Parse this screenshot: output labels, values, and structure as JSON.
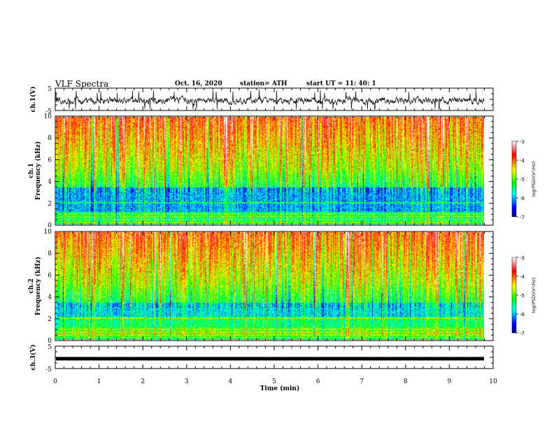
{
  "header": {
    "title": "VLF Spectra",
    "date": "Oct. 16, 2020",
    "station": "station= ATH",
    "start": "start  UT =   11: 40: 1"
  },
  "labels": {
    "ch1_wave": "ch.1(V)",
    "ch1_spec_a": "ch.1",
    "ch1_spec_b": "Frequency (kHz)",
    "ch2_spec_a": "ch.2",
    "ch2_spec_b": "Frequency (kHz)",
    "ch3_wave": "ch.3(V)",
    "xaxis": "Time  (min)",
    "colorbar": "log(PSD)(V²/Hz)"
  },
  "colors": {
    "low": "#000080",
    "blue": "#0000ff",
    "cyan": "#00ffff",
    "green": "#00ff00",
    "yellow": "#ffff00",
    "red": "#ff0000",
    "high": "#ffffff"
  },
  "chart_data": [
    {
      "type": "line",
      "name": "ch1-waveform",
      "xlabel": "",
      "ylabel": "ch.1(V)",
      "xlim": [
        0,
        10
      ],
      "ylim": [
        -5,
        5
      ],
      "yticks": [
        "5",
        "-5"
      ],
      "data_end_min": 9.8
    },
    {
      "type": "heatmap",
      "name": "ch1-spectrogram",
      "ylabel": "Frequency (kHz)",
      "xlim": [
        0,
        10
      ],
      "ylim": [
        0,
        10
      ],
      "yticks": [
        "0",
        "2",
        "4",
        "6",
        "8",
        "10"
      ],
      "colorbar": {
        "label": "log(PSD)(V²/Hz)",
        "range": [
          -7,
          -3
        ],
        "ticks": [
          "-3",
          "-4",
          "-5",
          "-6",
          "-7"
        ]
      }
    },
    {
      "type": "heatmap",
      "name": "ch2-spectrogram",
      "ylabel": "Frequency (kHz)",
      "xlim": [
        0,
        10
      ],
      "ylim": [
        0,
        10
      ],
      "yticks": [
        "0",
        "2",
        "4",
        "6",
        "8",
        "10"
      ],
      "colorbar": {
        "label": "log(PSD)(V²/Hz)",
        "range": [
          -7,
          -3
        ],
        "ticks": [
          "-3",
          "-4",
          "-5",
          "-6",
          "-7"
        ]
      }
    },
    {
      "type": "line",
      "name": "ch3-waveform",
      "ylabel": "ch.3(V)",
      "xlim": [
        0,
        10
      ],
      "ylim": [
        -5,
        5
      ],
      "yticks": [
        "5",
        "-5"
      ],
      "level": -0.6
    },
    {
      "type": "axis",
      "name": "time-axis",
      "xlabel": "Time  (min)",
      "xticks": [
        "0",
        "1",
        "2",
        "3",
        "4",
        "5",
        "6",
        "7",
        "8",
        "9",
        "10"
      ]
    }
  ]
}
